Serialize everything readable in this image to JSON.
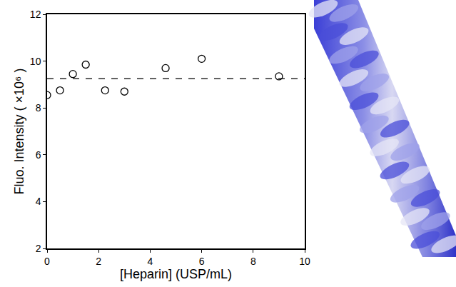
{
  "chart_data": {
    "type": "scatter",
    "x_label": "[Heparin] (USP/mL)",
    "y_label": "Fluo. Intensity ( ×10⁶ )",
    "x": [
      0,
      0.5,
      1,
      1.5,
      2.25,
      3,
      4.6,
      6,
      9
    ],
    "values": [
      8.55,
      8.75,
      9.45,
      9.85,
      8.75,
      8.7,
      9.7,
      10.1,
      9.35
    ],
    "mean_line": 9.25,
    "color": "#000000",
    "marker": "open circle",
    "line_style": "dashed",
    "xlim": [
      0,
      10
    ],
    "xticks": [
      0,
      2,
      4,
      6,
      8,
      10
    ],
    "ylim": [
      2,
      12
    ],
    "yticks": [
      2,
      4,
      6,
      8,
      10,
      12
    ],
    "grid": false
  }
}
